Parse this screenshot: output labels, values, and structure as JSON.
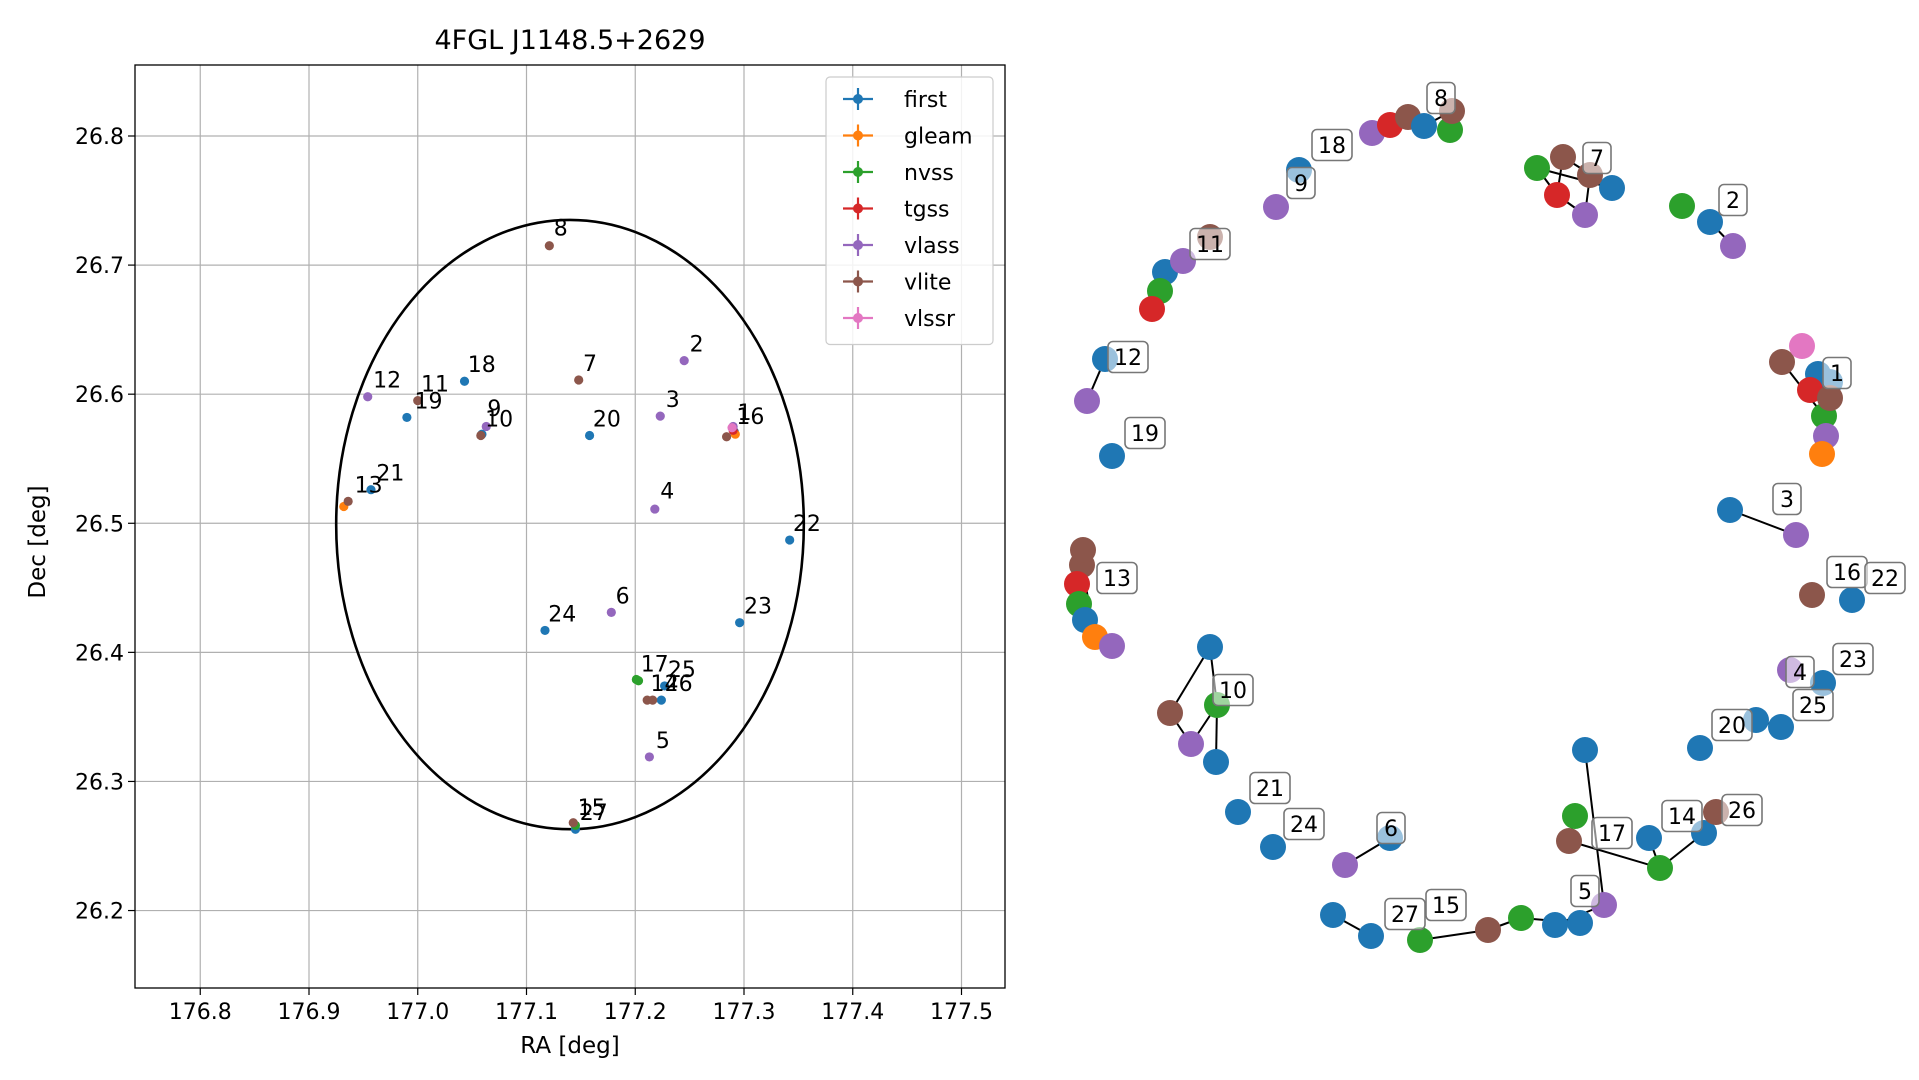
{
  "figure": {
    "title": "4FGL J1148.5+2629"
  },
  "colors": {
    "first": "#1f77b4",
    "gleam": "#ff7f0e",
    "nvss": "#2ca02c",
    "tgss": "#d62728",
    "vlass": "#9467bd",
    "vlite": "#8c564b",
    "vlssr": "#e377c2",
    "ellipse": "#000000",
    "grid": "#b0b0b0"
  },
  "chart_data": [
    {
      "type": "scatter",
      "title": "4FGL J1148.5+2629",
      "xlabel": "RA [deg]",
      "ylabel": "Dec [deg]",
      "xlim": [
        176.74,
        177.54
      ],
      "ylim": [
        26.14,
        26.855
      ],
      "xticks": [
        176.8,
        176.9,
        177.0,
        177.1,
        177.2,
        177.3,
        177.4,
        177.5
      ],
      "yticks": [
        26.2,
        26.3,
        26.4,
        26.5,
        26.6,
        26.7,
        26.8
      ],
      "grid": true,
      "legend_placement": "top-right",
      "ellipse": {
        "center": [
          177.14,
          26.499
        ],
        "ra_radius": 0.215,
        "dec_radius": 0.236
      },
      "series": [
        {
          "name": "first",
          "points": [
            [
              177.291,
              26.571
            ],
            [
              177.296,
              26.423
            ],
            [
              177.227,
              26.374
            ],
            [
              177.224,
              26.363
            ],
            [
              177.043,
              26.61
            ],
            [
              177.158,
              26.568
            ],
            [
              176.99,
              26.582
            ],
            [
              177.059,
              26.569
            ],
            [
              176.957,
              26.526
            ],
            [
              177.342,
              26.487
            ],
            [
              177.117,
              26.417
            ],
            [
              177.145,
              26.263
            ]
          ]
        },
        {
          "name": "gleam",
          "points": [
            [
              177.292,
              26.569
            ],
            [
              176.932,
              26.513
            ]
          ]
        },
        {
          "name": "nvss",
          "points": [
            [
              177.201,
              26.379
            ],
            [
              177.203,
              26.378
            ],
            [
              177.145,
              26.266
            ]
          ]
        },
        {
          "name": "tgss",
          "points": [
            [
              177.29,
              26.572
            ]
          ]
        },
        {
          "name": "vlass",
          "points": [
            [
              177.29,
              26.575
            ],
            [
              177.245,
              26.626
            ],
            [
              177.223,
              26.583
            ],
            [
              177.218,
              26.511
            ],
            [
              177.213,
              26.319
            ],
            [
              177.178,
              26.431
            ],
            [
              177.063,
              26.575
            ],
            [
              176.954,
              26.598
            ]
          ]
        },
        {
          "name": "vlite",
          "points": [
            [
              177.284,
              26.567
            ],
            [
              177.121,
              26.715
            ],
            [
              177.148,
              26.611
            ],
            [
              177.0,
              26.595
            ],
            [
              177.058,
              26.568
            ],
            [
              176.936,
              26.517
            ],
            [
              177.211,
              26.363
            ],
            [
              177.216,
              26.363
            ],
            [
              177.143,
              26.268
            ]
          ]
        },
        {
          "name": "vlssr",
          "points": [
            [
              177.289,
              26.574
            ]
          ]
        }
      ],
      "annotations": [
        {
          "label": "1",
          "x": 177.294,
          "y": 26.58
        },
        {
          "label": "2",
          "x": 177.25,
          "y": 26.633
        },
        {
          "label": "3",
          "x": 177.228,
          "y": 26.59
        },
        {
          "label": "4",
          "x": 177.223,
          "y": 26.519
        },
        {
          "label": "5",
          "x": 177.219,
          "y": 26.326
        },
        {
          "label": "6",
          "x": 177.182,
          "y": 26.438
        },
        {
          "label": "7",
          "x": 177.152,
          "y": 26.618
        },
        {
          "label": "8",
          "x": 177.125,
          "y": 26.723
        },
        {
          "label": "9",
          "x": 177.064,
          "y": 26.583
        },
        {
          "label": "10",
          "x": 177.062,
          "y": 26.575
        },
        {
          "label": "11",
          "x": 177.003,
          "y": 26.602
        },
        {
          "label": "12",
          "x": 176.959,
          "y": 26.605
        },
        {
          "label": "13",
          "x": 176.942,
          "y": 26.524
        },
        {
          "label": "14",
          "x": 177.214,
          "y": 26.37
        },
        {
          "label": "15",
          "x": 177.147,
          "y": 26.274
        },
        {
          "label": "16",
          "x": 177.293,
          "y": 26.577
        },
        {
          "label": "17",
          "x": 177.205,
          "y": 26.385
        },
        {
          "label": "18",
          "x": 177.046,
          "y": 26.617
        },
        {
          "label": "19",
          "x": 176.997,
          "y": 26.589
        },
        {
          "label": "20",
          "x": 177.161,
          "y": 26.575
        },
        {
          "label": "21",
          "x": 176.962,
          "y": 26.533
        },
        {
          "label": "22",
          "x": 177.345,
          "y": 26.494
        },
        {
          "label": "23",
          "x": 177.3,
          "y": 26.43
        },
        {
          "label": "24",
          "x": 177.12,
          "y": 26.424
        },
        {
          "label": "25",
          "x": 177.23,
          "y": 26.381
        },
        {
          "label": "26",
          "x": 177.227,
          "y": 26.37
        },
        {
          "label": "27",
          "x": 177.149,
          "y": 26.27
        }
      ]
    },
    {
      "type": "network",
      "title": "",
      "node_groups": [
        {
          "label": "1",
          "nodes": [
            "first",
            "first",
            "tgss",
            "vlite",
            "nvss",
            "vlass",
            "gleam",
            "vlite",
            "vlssr"
          ]
        },
        {
          "label": "2",
          "nodes": [
            "nvss",
            "first",
            "vlass"
          ]
        },
        {
          "label": "3",
          "nodes": [
            "first",
            "vlass"
          ]
        },
        {
          "label": "4",
          "nodes": [
            "vlass"
          ]
        },
        {
          "label": "5",
          "nodes": [
            "first",
            "vlass",
            "first"
          ]
        },
        {
          "label": "6",
          "nodes": [
            "vlass",
            "first"
          ]
        },
        {
          "label": "7",
          "nodes": [
            "nvss",
            "vlite",
            "tgss",
            "vlass",
            "first",
            "vlite"
          ]
        },
        {
          "label": "8",
          "nodes": [
            "vlass",
            "tgss",
            "vlite",
            "first",
            "nvss",
            "vlite"
          ]
        },
        {
          "label": "9",
          "nodes": [
            "vlass"
          ]
        },
        {
          "label": "10",
          "nodes": [
            "first",
            "vlite",
            "nvss",
            "vlass",
            "first"
          ]
        },
        {
          "label": "11",
          "nodes": [
            "first",
            "nvss",
            "vlass",
            "tgss",
            "vlite"
          ]
        },
        {
          "label": "12",
          "nodes": [
            "first",
            "vlass"
          ]
        },
        {
          "label": "13",
          "nodes": [
            "vlite",
            "vlite",
            "tgss",
            "nvss",
            "first",
            "gleam",
            "vlass"
          ]
        },
        {
          "label": "14",
          "nodes": [
            "first",
            "nvss"
          ]
        },
        {
          "label": "15",
          "nodes": [
            "nvss",
            "vlite",
            "nvss",
            "first"
          ]
        },
        {
          "label": "16",
          "nodes": [
            "vlite"
          ]
        },
        {
          "label": "17",
          "nodes": [
            "vlite",
            "nvss"
          ]
        },
        {
          "label": "18",
          "nodes": [
            "first"
          ]
        },
        {
          "label": "19",
          "nodes": [
            "first"
          ]
        },
        {
          "label": "20",
          "nodes": [
            "first"
          ]
        },
        {
          "label": "21",
          "nodes": [
            "first"
          ]
        },
        {
          "label": "22",
          "nodes": [
            "first"
          ]
        },
        {
          "label": "23",
          "nodes": [
            "first"
          ]
        },
        {
          "label": "24",
          "nodes": [
            "first"
          ]
        },
        {
          "label": "25",
          "nodes": [
            "first",
            "first"
          ]
        },
        {
          "label": "26",
          "nodes": [
            "first",
            "vlite"
          ]
        },
        {
          "label": "27",
          "nodes": [
            "first",
            "first"
          ]
        }
      ]
    }
  ]
}
